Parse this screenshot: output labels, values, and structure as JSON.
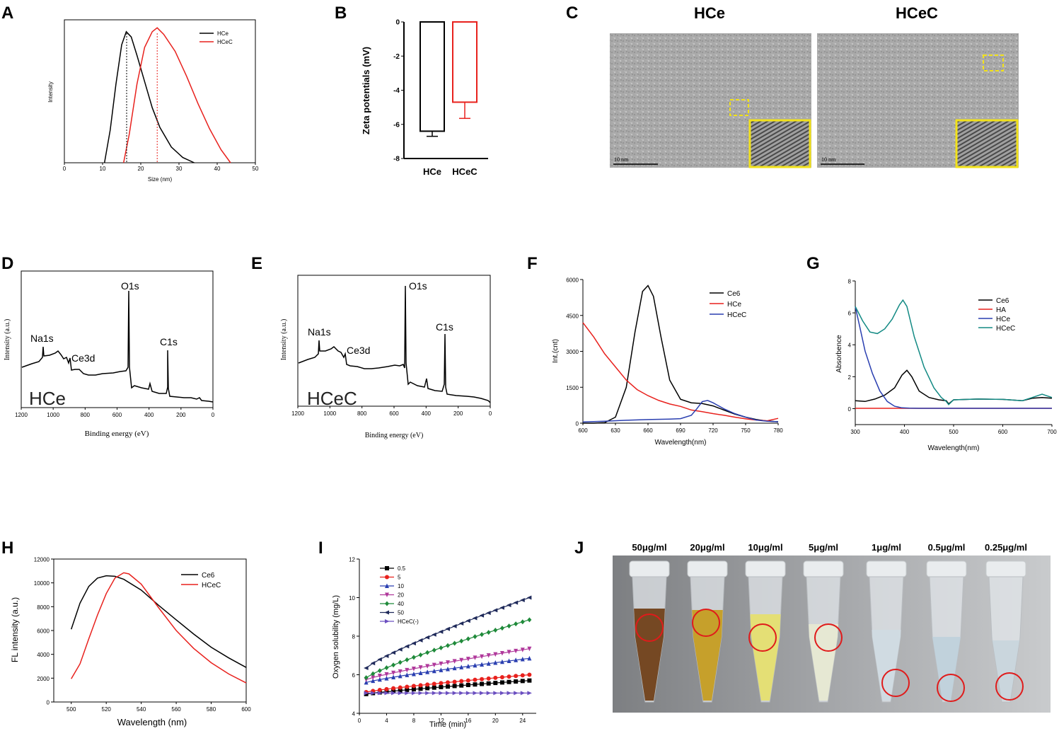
{
  "panels": {
    "A": "A",
    "B": "B",
    "C": "C",
    "D": "D",
    "E": "E",
    "F": "F",
    "G": "G",
    "H": "H",
    "I": "I",
    "J": "J"
  },
  "colors": {
    "black": "#000000",
    "red": "#e8211d",
    "blue": "#2a3fb0",
    "teal": "#138a84",
    "pink": "#b0389b",
    "green": "#1f8a3a",
    "navy": "#1f2a5a",
    "purple": "#6b4fc0",
    "yellow": "#f2e21a"
  },
  "chart_data": [
    {
      "id": "A",
      "type": "line",
      "title": "",
      "xlabel": "Size (nm)",
      "ylabel": "Intensity",
      "xlim": [
        0,
        50
      ],
      "ylim": [
        0,
        1.08
      ],
      "xticks": [
        "0",
        "10",
        "20",
        "30",
        "40",
        "50"
      ],
      "series": [
        {
          "name": "HCe",
          "color": "#000000",
          "x": [
            10.5,
            12,
            13.5,
            15,
            16.2,
            17.5,
            19,
            21,
            23,
            25,
            28,
            31,
            34
          ],
          "y": [
            0,
            0.25,
            0.6,
            0.9,
            1.0,
            0.96,
            0.82,
            0.62,
            0.42,
            0.27,
            0.12,
            0.04,
            0
          ]
        },
        {
          "name": "HCeC",
          "color": "#e8211d",
          "x": [
            15.5,
            17,
            19,
            21,
            23,
            24.3,
            26,
            29,
            32,
            35,
            38,
            41,
            43.5
          ],
          "y": [
            0,
            0.22,
            0.6,
            0.88,
            1.0,
            1.03,
            0.98,
            0.85,
            0.66,
            0.45,
            0.26,
            0.1,
            0
          ]
        }
      ],
      "vlines": [
        16.3,
        24.3
      ]
    },
    {
      "id": "B",
      "type": "bar",
      "ylabel": "Zeta potentials (mV)",
      "categories": [
        "HCe",
        "HCeC"
      ],
      "values": [
        -6.4,
        -4.7
      ],
      "errors": [
        0.3,
        0.95
      ],
      "ylim": [
        -8,
        0
      ],
      "yticks": [
        "0",
        "-2",
        "-4",
        "-6",
        "-8"
      ]
    },
    {
      "id": "C",
      "type": "image",
      "labels": [
        "HCe",
        "HCeC"
      ],
      "scalebar": "10 nm"
    },
    {
      "id": "D",
      "type": "line",
      "xlabel": "Binding energy (eV)",
      "ylabel": "Intensity (a.u.)",
      "xlim": [
        1200,
        0
      ],
      "xticks": [
        "1200",
        "1000",
        "800",
        "600",
        "400",
        "200",
        "0"
      ],
      "sample": "HCe",
      "peaks": [
        "Na1s",
        "Ce3d",
        "O1s",
        "C1s"
      ]
    },
    {
      "id": "E",
      "type": "line",
      "xlabel": "Binding energy (eV)",
      "ylabel": "Intensity (a.u.)",
      "xlim": [
        1200,
        0
      ],
      "xticks": [
        "1200",
        "1000",
        "800",
        "600",
        "400",
        "200",
        "0"
      ],
      "sample": "HCeC",
      "peaks": [
        "Na1s",
        "Ce3d",
        "O1s",
        "C1s"
      ]
    },
    {
      "id": "F",
      "type": "line",
      "xlabel": "Wavelength(nm)",
      "ylabel": "Int.(cnt)",
      "xlim": [
        600,
        780
      ],
      "ylim": [
        0,
        6000
      ],
      "xticks": [
        "600",
        "630",
        "660",
        "690",
        "720",
        "750",
        "780"
      ],
      "yticks": [
        "0",
        "1500",
        "3000",
        "4500",
        "6000"
      ],
      "series": [
        {
          "name": "Ce6",
          "color": "#000000",
          "x": [
            600,
            610,
            620,
            630,
            640,
            648,
            655,
            660,
            665,
            672,
            680,
            690,
            700,
            710,
            720,
            730,
            740,
            750,
            760,
            770,
            780
          ],
          "y": [
            0,
            0,
            20,
            250,
            1500,
            3800,
            5500,
            5750,
            5300,
            3600,
            1800,
            1000,
            850,
            820,
            720,
            550,
            380,
            250,
            150,
            90,
            60
          ]
        },
        {
          "name": "HCe",
          "color": "#e8211d",
          "x": [
            600,
            610,
            620,
            630,
            640,
            650,
            660,
            670,
            680,
            690,
            700,
            710,
            720,
            730,
            740,
            750,
            760,
            770,
            780
          ],
          "y": [
            4200,
            3600,
            2900,
            2350,
            1800,
            1400,
            1150,
            950,
            800,
            700,
            550,
            480,
            400,
            330,
            250,
            180,
            130,
            100,
            200
          ]
        },
        {
          "name": "HCeC",
          "color": "#2a3fb0",
          "x": [
            600,
            620,
            640,
            660,
            680,
            690,
            700,
            705,
            710,
            715,
            720,
            730,
            740,
            750,
            760,
            770,
            780
          ],
          "y": [
            50,
            80,
            120,
            150,
            170,
            190,
            330,
            600,
            900,
            950,
            850,
            600,
            400,
            250,
            130,
            80,
            60
          ]
        }
      ]
    },
    {
      "id": "G",
      "type": "line",
      "xlabel": "Wavelength(nm)",
      "ylabel": "Absorbence",
      "xlim": [
        300,
        700
      ],
      "ylim": [
        -1,
        8
      ],
      "xticks": [
        "300",
        "400",
        "500",
        "600",
        "700"
      ],
      "yticks": [
        "0",
        "2",
        "4",
        "6",
        "8"
      ],
      "series": [
        {
          "name": "Ce6",
          "color": "#000000",
          "x": [
            300,
            320,
            340,
            360,
            380,
            395,
            405,
            415,
            430,
            450,
            470,
            485,
            490,
            500,
            550,
            600,
            640,
            660,
            680,
            700
          ],
          "y": [
            0.5,
            0.45,
            0.6,
            0.85,
            1.3,
            2.1,
            2.4,
            2.0,
            1.1,
            0.7,
            0.55,
            0.5,
            0.3,
            0.55,
            0.6,
            0.58,
            0.5,
            0.65,
            0.7,
            0.65
          ]
        },
        {
          "name": "HA",
          "color": "#e8211d",
          "x": [
            300,
            400,
            500,
            600,
            700
          ],
          "y": [
            0.02,
            0.02,
            0.02,
            0.02,
            0.02
          ]
        },
        {
          "name": "HCe",
          "color": "#2a3fb0",
          "x": [
            300,
            310,
            320,
            335,
            350,
            365,
            380,
            395,
            410,
            430,
            500,
            600,
            700
          ],
          "y": [
            6.4,
            5.0,
            3.6,
            2.2,
            1.1,
            0.45,
            0.15,
            0.05,
            0.03,
            0.02,
            0.02,
            0.02,
            0.02
          ]
        },
        {
          "name": "HCeC",
          "color": "#138a84",
          "x": [
            300,
            315,
            330,
            345,
            360,
            375,
            390,
            397,
            405,
            420,
            440,
            460,
            475,
            485,
            490,
            500,
            550,
            600,
            640,
            660,
            680,
            700
          ],
          "y": [
            6.4,
            5.5,
            4.8,
            4.7,
            5.0,
            5.6,
            6.5,
            6.8,
            6.4,
            4.5,
            2.6,
            1.3,
            0.7,
            0.45,
            0.25,
            0.55,
            0.6,
            0.58,
            0.5,
            0.7,
            0.9,
            0.7
          ]
        }
      ]
    },
    {
      "id": "H",
      "type": "line",
      "xlabel": "Wavelength (nm)",
      "ylabel": "FL intensity (a.u.)",
      "xlim": [
        490,
        600
      ],
      "ylim": [
        0,
        12000
      ],
      "xticks": [
        "500",
        "520",
        "540",
        "560",
        "580",
        "600"
      ],
      "yticks": [
        "0",
        "2000",
        "4000",
        "6000",
        "8000",
        "10000",
        "12000"
      ],
      "series": [
        {
          "name": "Ce6",
          "color": "#000000",
          "x": [
            500,
            505,
            510,
            515,
            520,
            525,
            530,
            540,
            550,
            560,
            570,
            580,
            590,
            600
          ],
          "y": [
            6100,
            8300,
            9700,
            10400,
            10600,
            10550,
            10300,
            9400,
            8100,
            6900,
            5700,
            4600,
            3700,
            2900
          ]
        },
        {
          "name": "HCeC",
          "color": "#e8211d",
          "x": [
            500,
            505,
            510,
            515,
            520,
            525,
            530,
            533,
            540,
            550,
            560,
            570,
            580,
            590,
            600
          ],
          "y": [
            1950,
            3200,
            5300,
            7300,
            9100,
            10400,
            10850,
            10750,
            9900,
            7900,
            6000,
            4500,
            3300,
            2350,
            1600
          ]
        }
      ]
    },
    {
      "id": "I",
      "type": "line",
      "xlabel": "Time (min)",
      "ylabel": "Oxygen solubility (mg/L)",
      "xlim": [
        0,
        26
      ],
      "ylim": [
        4,
        12
      ],
      "xticks": [
        "0",
        "4",
        "8",
        "12",
        "16",
        "20",
        "24"
      ],
      "yticks": [
        "4",
        "6",
        "8",
        "10",
        "12"
      ],
      "series": [
        {
          "name": "0.5",
          "color": "#000000",
          "marker": "square",
          "start": 5.0,
          "end": 5.7
        },
        {
          "name": "5",
          "color": "#e8211d",
          "marker": "circle",
          "start": 5.1,
          "end": 6.0
        },
        {
          "name": "10",
          "color": "#2a3fb0",
          "marker": "triangle-up",
          "start": 5.6,
          "end": 6.85
        },
        {
          "name": "20",
          "color": "#b0389b",
          "marker": "triangle-down",
          "start": 5.75,
          "end": 7.35
        },
        {
          "name": "40",
          "color": "#1f8a3a",
          "marker": "diamond",
          "start": 5.85,
          "end": 8.85
        },
        {
          "name": "50",
          "color": "#1f2a5a",
          "marker": "triangle-left",
          "start": 6.35,
          "end": 10.0
        },
        {
          "name": "HCeC(-)",
          "color": "#6b4fc0",
          "marker": "triangle-right",
          "start": 5.05,
          "end": 5.05
        }
      ]
    },
    {
      "id": "J",
      "type": "image",
      "concentrations": [
        "50μg/ml",
        "20μg/ml",
        "10μg/ml",
        "5μg/ml",
        "1μg/ml",
        "0.5μg/ml",
        "0.25μg/ml"
      ]
    }
  ]
}
